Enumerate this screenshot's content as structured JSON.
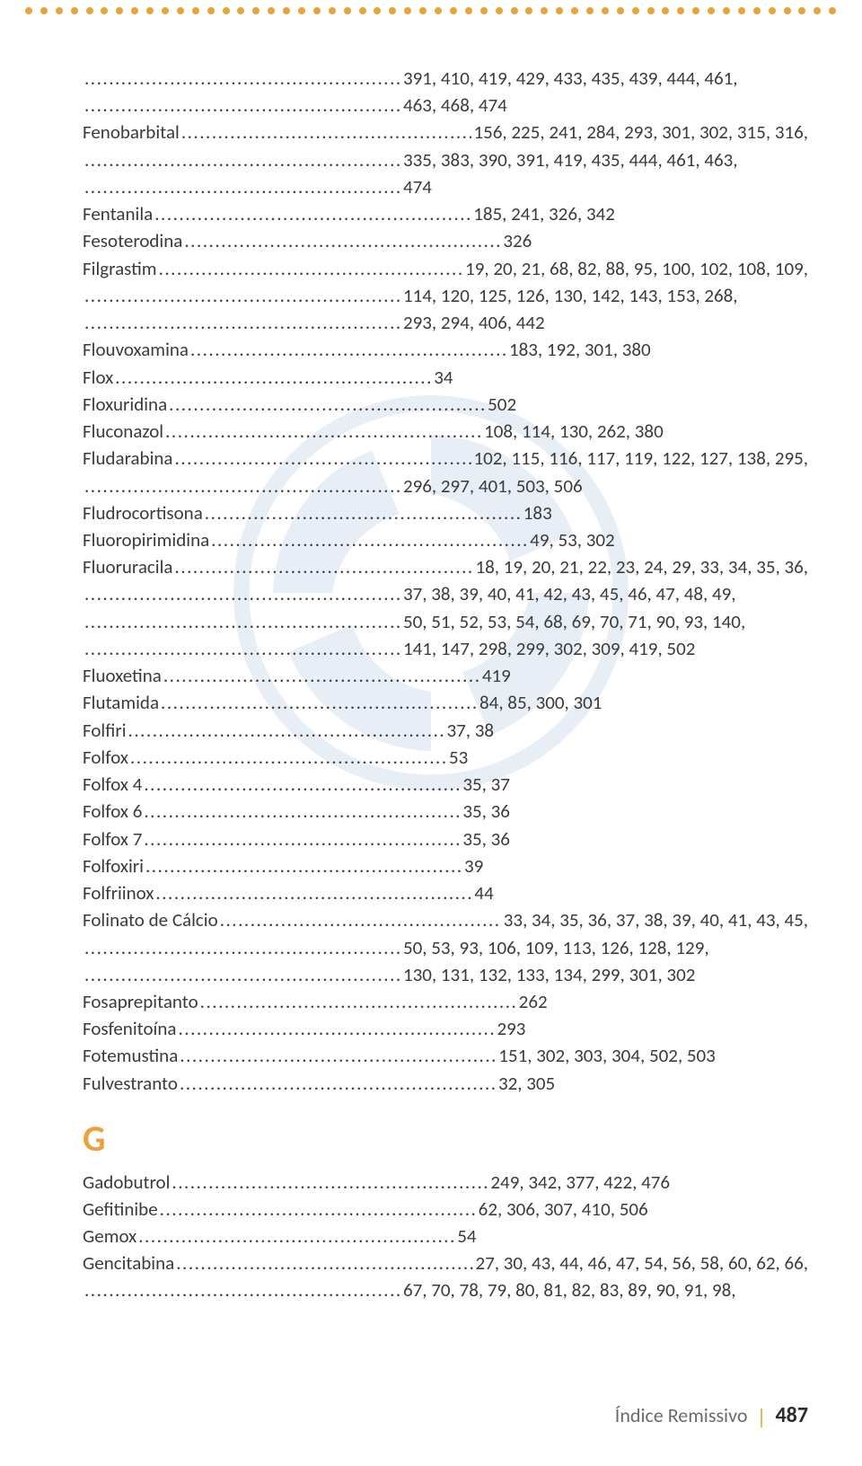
{
  "dots_count": 54,
  "section_letter": "G",
  "footer": {
    "label": "Índice Remissivo",
    "page": "487"
  },
  "colors": {
    "accent": "#e8a33d",
    "text": "#3b3b3b",
    "watermark": "#2a5fb0",
    "background": "#ffffff"
  },
  "entries": [
    {
      "term": "",
      "pages": "391, 410, 419, 429, 433, 435, 439, 444, 461,",
      "half": true
    },
    {
      "term": "",
      "pages": "463, 468, 474",
      "half": true
    },
    {
      "term": "Fenobarbital",
      "pages": "156, 225, 241, 284, 293, 301, 302, 315, 316,",
      "half": false
    },
    {
      "term": "",
      "pages": "335, 383, 390, 391, 419, 435, 444, 461, 463,",
      "half": true
    },
    {
      "term": "",
      "pages": "474",
      "half": true
    },
    {
      "term": "Fentanila",
      "pages": " 185, 241, 326, 342",
      "half": true
    },
    {
      "term": "Fesoterodina",
      "pages": " 326",
      "half": true
    },
    {
      "term": "Filgrastim",
      "pages": "19, 20, 21, 68, 82, 88, 95, 100, 102, 108, 109,",
      "half": false
    },
    {
      "term": "",
      "pages": "114, 120, 125, 126, 130, 142, 143, 153, 268,",
      "half": true
    },
    {
      "term": "",
      "pages": "293, 294, 406, 442",
      "half": true
    },
    {
      "term": "Flouvoxamina",
      "pages": " 183, 192, 301, 380",
      "half": true
    },
    {
      "term": "Flox",
      "pages": " 34",
      "half": true
    },
    {
      "term": "Floxuridina",
      "pages": " 502",
      "half": true
    },
    {
      "term": "Fluconazol",
      "pages": " 108, 114, 130, 262, 380",
      "half": true
    },
    {
      "term": "Fludarabina",
      "pages": "102, 115, 116, 117, 119, 122, 127, 138, 295,",
      "half": false
    },
    {
      "term": "",
      "pages": " 296, 297, 401, 503, 506",
      "half": true
    },
    {
      "term": "Fludrocortisona",
      "pages": " 183",
      "half": true
    },
    {
      "term": "Fluoropirimidina",
      "pages": " 49, 53, 302",
      "half": true
    },
    {
      "term": "Fluoruracila",
      "pages": "18, 19, 20, 21, 22, 23, 24, 29, 33, 34, 35, 36,",
      "half": false
    },
    {
      "term": "",
      "pages": "37, 38, 39, 40, 41, 42, 43, 45, 46, 47, 48, 49,",
      "half": true
    },
    {
      "term": "",
      "pages": "50, 51, 52, 53, 54, 68, 69, 70, 71, 90, 93, 140,",
      "half": true
    },
    {
      "term": "",
      "pages": " 141, 147, 298, 299, 302, 309, 419, 502",
      "half": true
    },
    {
      "term": "Fluoxetina",
      "pages": " 419",
      "half": true
    },
    {
      "term": "Flutamida",
      "pages": " 84, 85, 300, 301",
      "half": true
    },
    {
      "term": "Folfiri",
      "pages": " 37, 38",
      "half": true
    },
    {
      "term": "Folfox",
      "pages": " 53",
      "half": true
    },
    {
      "term": "Folfox 4",
      "pages": " 35, 37",
      "half": true
    },
    {
      "term": "Folfox 6",
      "pages": " 35, 36",
      "half": true
    },
    {
      "term": "Folfox 7",
      "pages": " 35, 36",
      "half": true
    },
    {
      "term": "Folfoxiri",
      "pages": " 39",
      "half": true
    },
    {
      "term": "Folfriinox",
      "pages": " 44",
      "half": true
    },
    {
      "term": "Folinato de Cálcio",
      "pages": " 33, 34, 35, 36, 37, 38, 39, 40, 41, 43, 45,",
      "half": true
    },
    {
      "term": "",
      "pages": "50, 53, 93, 106, 109, 113, 126, 128, 129,",
      "half": true
    },
    {
      "term": "",
      "pages": " 130, 131, 132, 133, 134, 299, 301, 302",
      "half": true
    },
    {
      "term": "Fosaprepitanto",
      "pages": " 262",
      "half": true
    },
    {
      "term": "Fosfenitoína",
      "pages": " 293",
      "half": true
    },
    {
      "term": "Fotemustina",
      "pages": " 151, 302, 303, 304, 502, 503",
      "half": true
    },
    {
      "term": "Fulvestranto",
      "pages": " 32, 305",
      "half": true
    }
  ],
  "entries_g": [
    {
      "term": "Gadobutrol",
      "pages": " 249, 342, 377, 422, 476",
      "half": true
    },
    {
      "term": "Gefitinibe",
      "pages": " 62, 306, 307, 410, 506",
      "half": true
    },
    {
      "term": "Gemox",
      "pages": " 54",
      "half": true
    },
    {
      "term": "Gencitabina",
      "pages": "27, 30, 43, 44, 46, 47, 54, 56, 58, 60, 62, 66,",
      "half": false
    },
    {
      "term": "",
      "pages": "67, 70, 78, 79, 80, 81, 82, 83, 89, 90, 91, 98,",
      "half": true
    }
  ]
}
